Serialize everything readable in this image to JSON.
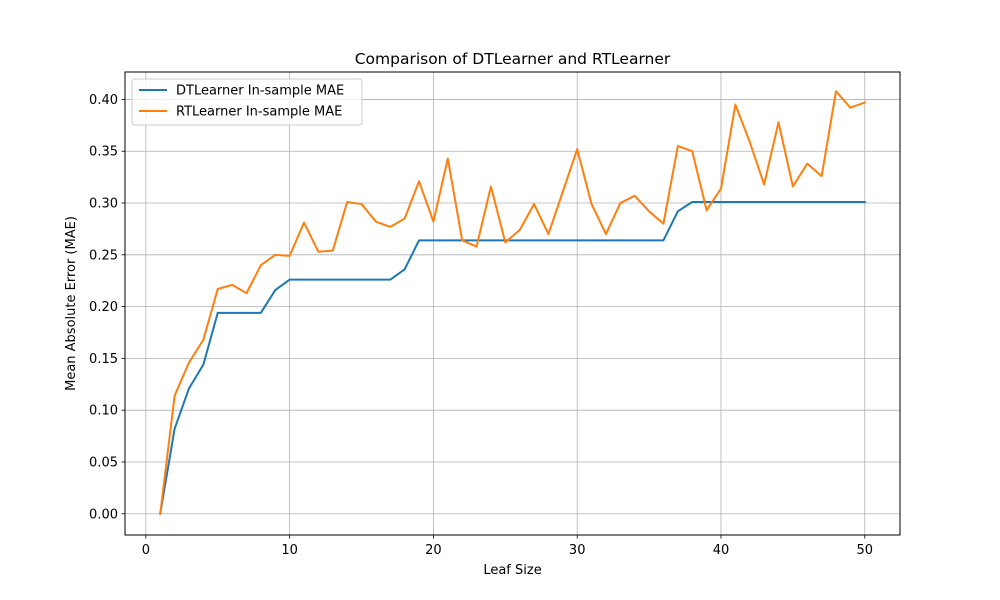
{
  "chart_data": {
    "type": "line",
    "title": "Comparison of DTLearner and RTLearner",
    "xlabel": "Leaf Size",
    "ylabel": "Mean Absolute Error (MAE)",
    "xlim": [
      -1.45,
      52.45
    ],
    "ylim": [
      -0.0205,
      0.4265
    ],
    "x_ticks": [
      0,
      10,
      20,
      30,
      40,
      50
    ],
    "y_ticks": [
      0.0,
      0.05,
      0.1,
      0.15,
      0.2,
      0.25,
      0.3,
      0.35,
      0.4
    ],
    "x_tick_labels": [
      "0",
      "10",
      "20",
      "30",
      "40",
      "50"
    ],
    "y_tick_labels": [
      "0.00",
      "0.05",
      "0.10",
      "0.15",
      "0.20",
      "0.25",
      "0.30",
      "0.35",
      "0.40"
    ],
    "grid": true,
    "legend_position": "top-left",
    "x": [
      1,
      2,
      3,
      4,
      5,
      6,
      7,
      8,
      9,
      10,
      11,
      12,
      13,
      14,
      15,
      16,
      17,
      18,
      19,
      20,
      21,
      22,
      23,
      24,
      25,
      26,
      27,
      28,
      29,
      30,
      31,
      32,
      33,
      34,
      35,
      36,
      37,
      38,
      39,
      40,
      41,
      42,
      43,
      44,
      45,
      46,
      47,
      48,
      49,
      50
    ],
    "series": [
      {
        "name": "DTLearner In-sample MAE",
        "color": "#1f77b4",
        "values": [
          0.0,
          0.082,
          0.121,
          0.144,
          0.194,
          0.194,
          0.194,
          0.194,
          0.216,
          0.226,
          0.226,
          0.226,
          0.226,
          0.226,
          0.226,
          0.226,
          0.226,
          0.236,
          0.264,
          0.264,
          0.264,
          0.264,
          0.264,
          0.264,
          0.264,
          0.264,
          0.264,
          0.264,
          0.264,
          0.264,
          0.264,
          0.264,
          0.264,
          0.264,
          0.264,
          0.264,
          0.292,
          0.301,
          0.301,
          0.301,
          0.301,
          0.301,
          0.301,
          0.301,
          0.301,
          0.301,
          0.301,
          0.301,
          0.301,
          0.301
        ]
      },
      {
        "name": "RTLearner In-sample MAE",
        "color": "#ff7f0e",
        "values": [
          0.0,
          0.114,
          0.146,
          0.168,
          0.217,
          0.221,
          0.213,
          0.24,
          0.25,
          0.249,
          0.281,
          0.253,
          0.254,
          0.301,
          0.299,
          0.282,
          0.277,
          0.285,
          0.321,
          0.282,
          0.343,
          0.264,
          0.258,
          0.316,
          0.262,
          0.274,
          0.299,
          0.27,
          0.311,
          0.352,
          0.299,
          0.27,
          0.3,
          0.307,
          0.292,
          0.28,
          0.355,
          0.35,
          0.293,
          0.314,
          0.395,
          0.359,
          0.318,
          0.378,
          0.316,
          0.338,
          0.326,
          0.408,
          0.392,
          0.397
        ]
      }
    ]
  }
}
